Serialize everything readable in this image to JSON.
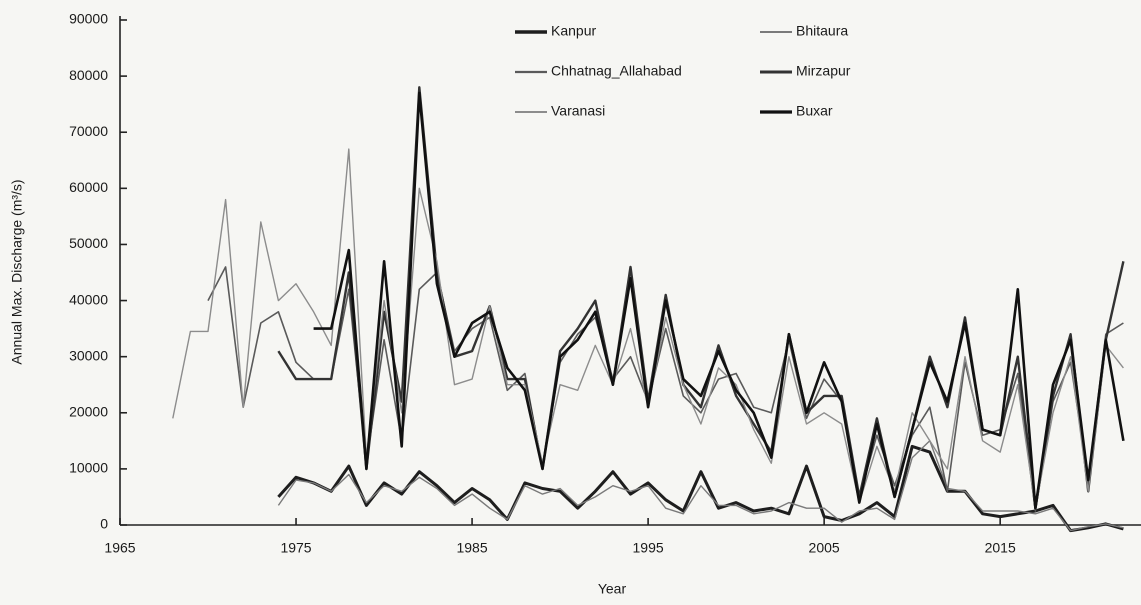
{
  "chart_data": {
    "type": "line",
    "xlabel": "Year",
    "ylabel": "Annual Max. Discharge (m³/s)",
    "x": [
      1968,
      1969,
      1970,
      1971,
      1972,
      1973,
      1974,
      1975,
      1976,
      1977,
      1978,
      1979,
      1980,
      1981,
      1982,
      1983,
      1984,
      1985,
      1986,
      1987,
      1988,
      1989,
      1990,
      1991,
      1992,
      1993,
      1994,
      1995,
      1996,
      1997,
      1998,
      1999,
      2000,
      2001,
      2002,
      2003,
      2004,
      2005,
      2006,
      2007,
      2008,
      2009,
      2010,
      2011,
      2012,
      2013,
      2014,
      2015,
      2016,
      2017,
      2018,
      2019,
      2020,
      2021,
      2022
    ],
    "series": [
      {
        "name": "Kanpur",
        "color": "#1e1e1e",
        "values": [
          null,
          null,
          null,
          null,
          null,
          null,
          5000,
          8500,
          7500,
          6000,
          10500,
          3500,
          7500,
          5500,
          9500,
          7000,
          4000,
          6500,
          4500,
          1000,
          7500,
          6500,
          6000,
          3000,
          6000,
          9500,
          5500,
          7500,
          4500,
          2500,
          9500,
          3000,
          4000,
          2500,
          3000,
          2000,
          10500,
          1500,
          800,
          2000,
          4000,
          1500,
          14000,
          13000,
          6000,
          6000,
          2000,
          1500,
          2000,
          2500,
          3500,
          -1000,
          -500,
          200,
          -700
        ]
      },
      {
        "name": "Bhitaura",
        "color": "#7a7a7a",
        "values": [
          null,
          null,
          null,
          null,
          null,
          null,
          3500,
          8000,
          7500,
          6000,
          9000,
          4000,
          7000,
          6000,
          8500,
          6500,
          3500,
          5500,
          3000,
          1000,
          7000,
          5500,
          6500,
          3500,
          5000,
          7000,
          6000,
          7000,
          3000,
          2000,
          7000,
          3500,
          3500,
          2000,
          2500,
          4000,
          3000,
          3000,
          500,
          2500,
          3000,
          1000,
          12000,
          15000,
          6500,
          6000,
          2500,
          2500,
          2500,
          2000,
          3000,
          -1000,
          -300,
          200,
          -500
        ]
      },
      {
        "name": "Chhatnag_Allahabad",
        "color": "#5a5a5a",
        "values": [
          null,
          null,
          40000,
          46000,
          21000,
          36000,
          38000,
          29000,
          26000,
          26000,
          42000,
          11000,
          33000,
          15000,
          42000,
          45000,
          31000,
          35000,
          37000,
          24000,
          27000,
          10000,
          29000,
          34000,
          37000,
          26000,
          30000,
          22000,
          35000,
          23000,
          20000,
          26000,
          27000,
          21000,
          20000,
          33000,
          19000,
          26000,
          22000,
          5000,
          16000,
          7000,
          16000,
          21000,
          6000,
          29000,
          16000,
          17000,
          27000,
          2500,
          22000,
          29000,
          8000,
          34000,
          36000
        ]
      },
      {
        "name": "Mirzapur",
        "color": "#333333",
        "values": [
          null,
          null,
          null,
          null,
          null,
          null,
          31000,
          26000,
          26000,
          26000,
          45000,
          10000,
          38000,
          22000,
          78000,
          45000,
          30000,
          31000,
          39000,
          26000,
          26000,
          10000,
          31000,
          35000,
          40000,
          25000,
          46000,
          22000,
          41000,
          25000,
          21000,
          32000,
          23000,
          18000,
          13000,
          34000,
          20000,
          23000,
          23000,
          5000,
          19000,
          5000,
          17000,
          30000,
          21000,
          37000,
          17000,
          16000,
          30000,
          3000,
          23000,
          34000,
          6000,
          33000,
          47000
        ]
      },
      {
        "name": "Varanasi",
        "color": "#8c8c8c",
        "values": [
          19000,
          34500,
          34500,
          58000,
          21000,
          54000,
          40000,
          43000,
          38000,
          32000,
          67000,
          12000,
          40000,
          20000,
          60000,
          47000,
          25000,
          26000,
          39000,
          25000,
          25000,
          11000,
          25000,
          24000,
          32000,
          25000,
          35000,
          21000,
          37000,
          25000,
          18000,
          28000,
          25000,
          17000,
          11000,
          30000,
          18000,
          20000,
          18000,
          4000,
          14000,
          6000,
          20000,
          15000,
          10000,
          30000,
          15000,
          13000,
          25000,
          3000,
          20000,
          30000,
          6000,
          32000,
          28000
        ]
      },
      {
        "name": "Buxar",
        "color": "#111111",
        "values": [
          null,
          null,
          null,
          null,
          null,
          null,
          null,
          null,
          35000,
          35000,
          49000,
          10000,
          47000,
          14000,
          77000,
          43000,
          30000,
          36000,
          38000,
          28000,
          24000,
          10000,
          30000,
          33000,
          38000,
          25000,
          44000,
          21000,
          40000,
          26000,
          23000,
          31000,
          24000,
          20000,
          12000,
          34000,
          20000,
          29000,
          22000,
          4000,
          18000,
          5000,
          17000,
          29000,
          22000,
          36000,
          17000,
          16000,
          42000,
          3000,
          25000,
          33000,
          8000,
          33000,
          15000
        ]
      }
    ],
    "xlim": [
      1965,
      2023
    ],
    "xticks": [
      1965,
      1975,
      1985,
      1995,
      2005,
      2015
    ],
    "ylim": [
      0,
      90000
    ],
    "yticks": [
      0,
      10000,
      20000,
      30000,
      40000,
      50000,
      60000,
      70000,
      80000,
      90000
    ],
    "grid": false,
    "legend": "top"
  }
}
